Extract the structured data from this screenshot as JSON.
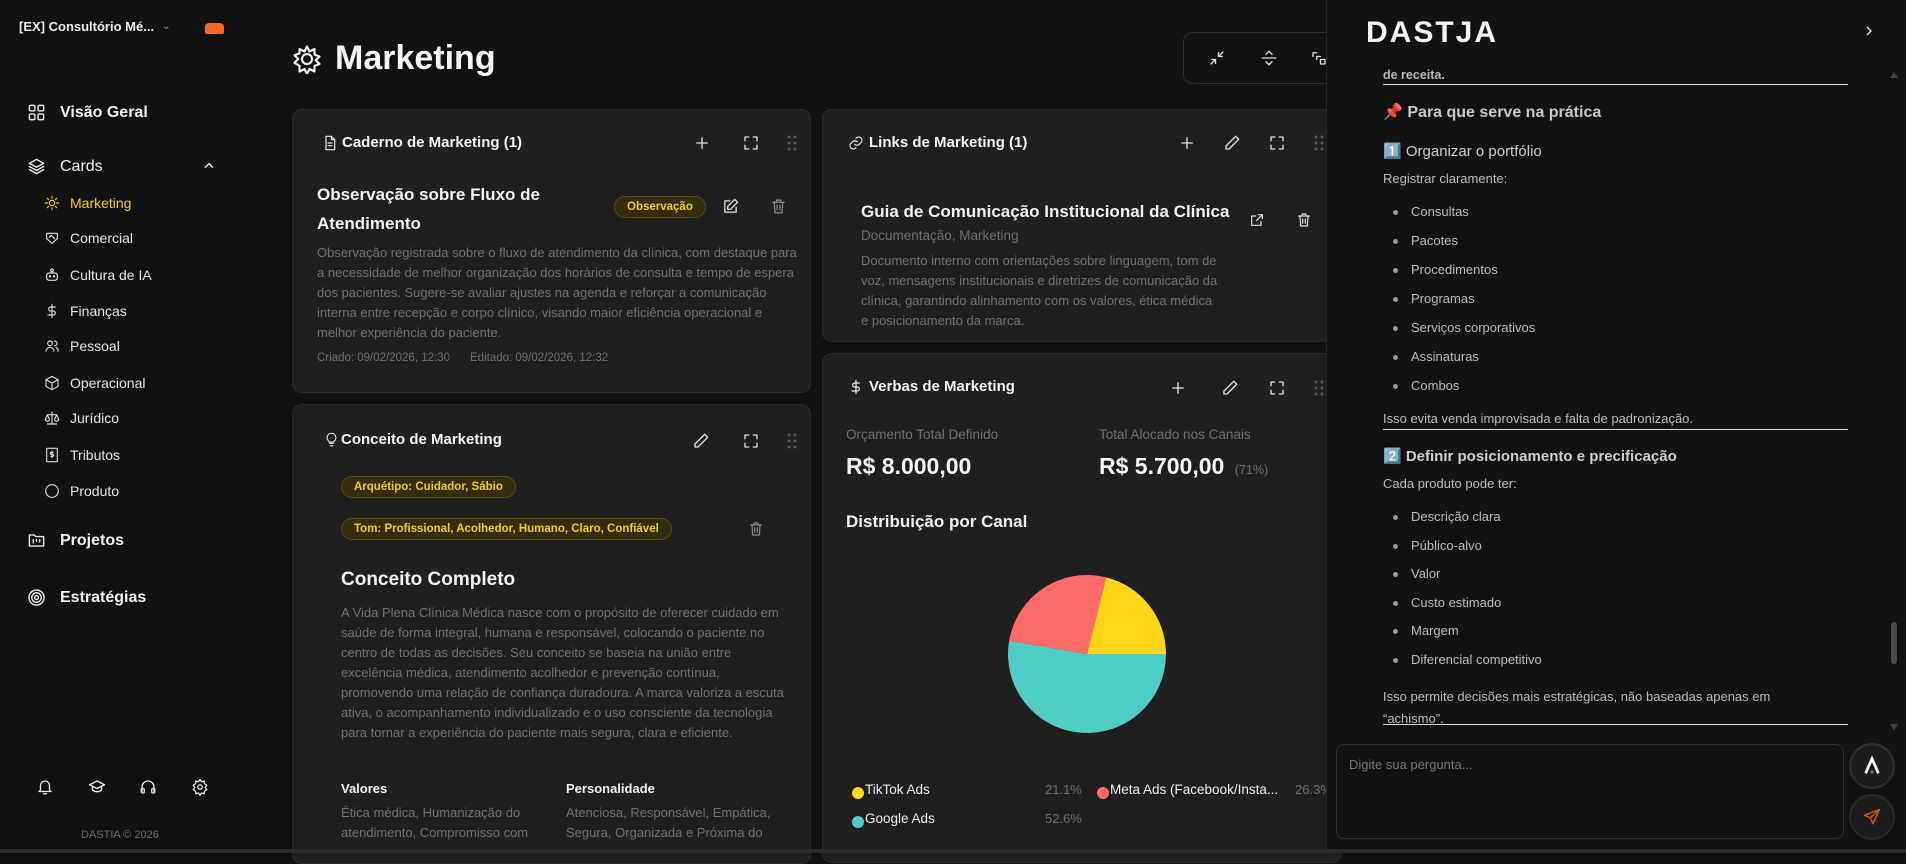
{
  "sidebar": {
    "workspace": "[EX] Consultório Mé...",
    "overview": "Visão Geral",
    "cards_section": "Cards",
    "card_items": [
      {
        "label": "Marketing",
        "icon": "sun-icon",
        "active": true
      },
      {
        "label": "Comercial",
        "icon": "handshake-icon"
      },
      {
        "label": "Cultura de IA",
        "icon": "robot-icon"
      },
      {
        "label": "Finanças",
        "icon": "dollar-icon"
      },
      {
        "label": "Pessoal",
        "icon": "users-icon"
      },
      {
        "label": "Operacional",
        "icon": "box-icon"
      },
      {
        "label": "Jurídico",
        "icon": "scale-icon"
      },
      {
        "label": "Tributos",
        "icon": "receipt-icon"
      },
      {
        "label": "Produto",
        "icon": "circle-icon"
      }
    ],
    "projects": "Projetos",
    "strategies": "Estratégias",
    "footer": "DASTIA © 2026",
    "accent": "#f5cf17",
    "workspace_badge_color": "#f06a1d"
  },
  "header": {
    "title": "Marketing"
  },
  "notebook": {
    "title": "Caderno de Marketing (1)",
    "note": {
      "title": "Observação sobre Fluxo de Atendimento",
      "badge": "Observação",
      "body": "Observação registrada sobre o fluxo de atendimento da clínica, com destaque para a necessidade de melhor organização dos horários de consulta e tempo de espera dos pacientes. Sugere-se avaliar ajustes na agenda e reforçar a comunicação interna entre recepção e corpo clínico, visando maior eficiência operacional e melhor experiência do paciente.",
      "created": "Criado: 09/02/2026, 12:30",
      "edited": "Editado: 09/02/2026, 12:32"
    }
  },
  "concept": {
    "title": "Conceito de Marketing",
    "archetype": "Arquétipo: Cuidador, Sábio",
    "tone": "Tom: Profissional, Acolhedor, Humano, Claro, Confiável",
    "full_title": "Conceito Completo",
    "full_text": "A Vida Plena Clínica Médica nasce com o propósito de oferecer cuidado em saúde de forma integral, humana e responsável, colocando o paciente no centro de todas as decisões. Seu conceito se baseia na união entre excelência médica, atendimento acolhedor e prevenção contínua, promovendo uma relação de confiança duradoura. A marca valoriza a escuta ativa, o acompanhamento individualizado e o uso consciente da tecnologia para tornar a experiência do paciente mais segura, clara e eficiente.",
    "values_title": "Valores",
    "values_text": "Ética médica, Humanização do atendimento, Compromisso com",
    "personality_title": "Personalidade",
    "personality_text": "Atenciosa, Responsável, Empática, Segura, Organizada e Próxima do"
  },
  "links": {
    "title": "Links de Marketing (1)",
    "item": {
      "title": "Guia de Comunicação Institucional da Clínica",
      "tags": "Documentação, Marketing",
      "description": "Documento interno com orientações sobre linguagem, tom de voz, mensagens institucionais e diretrizes de comunicação da clínica, garantindo alinhamento com os valores, ética médica e posicionamento da marca."
    }
  },
  "budget": {
    "title": "Verbas de Marketing",
    "total_label": "Orçamento Total Definido",
    "total_value": "R$ 8.000,00",
    "allocated_label": "Total Alocado nos Canais",
    "allocated_value": "R$ 5.700,00",
    "allocated_pct": "(71%)",
    "dist_title": "Distribuição por Canal"
  },
  "chart_data": {
    "type": "pie",
    "title": "Distribuição por Canal",
    "categories": [
      "TikTok Ads",
      "Meta Ads (Facebook/Insta...",
      "Google Ads"
    ],
    "values": [
      21.1,
      26.3,
      52.6
    ],
    "labels": [
      "21.1%",
      "26.3%",
      "52.6%"
    ],
    "colors": [
      "#ffd619",
      "#ff6b6b",
      "#4ecdc4"
    ],
    "legend": "bottom"
  },
  "assistant": {
    "logo": "DASTJA",
    "content": {
      "prev_tail": "de receita.",
      "section_title": "📌 Para que serve na prática",
      "h1": "1️⃣ Organizar o portfólio",
      "p1": "Registrar claramente:",
      "list1": [
        "Consultas",
        "Pacotes",
        "Procedimentos",
        "Programas",
        "Serviços corporativos",
        "Assinaturas",
        "Combos"
      ],
      "p2": "Isso evita venda improvisada e falta de padronização.",
      "h2": "2️⃣ Definir posicionamento e precificação",
      "p3": "Cada produto pode ter:",
      "list2": [
        "Descrição clara",
        "Público-alvo",
        "Valor",
        "Custo estimado",
        "Margem",
        "Diferencial competitivo"
      ],
      "p4": "Isso permite decisões mais estratégicas, não baseadas apenas em “achismo”."
    },
    "input_placeholder": "Digite sua pergunta...",
    "brand_accent": "#f06a1d"
  }
}
